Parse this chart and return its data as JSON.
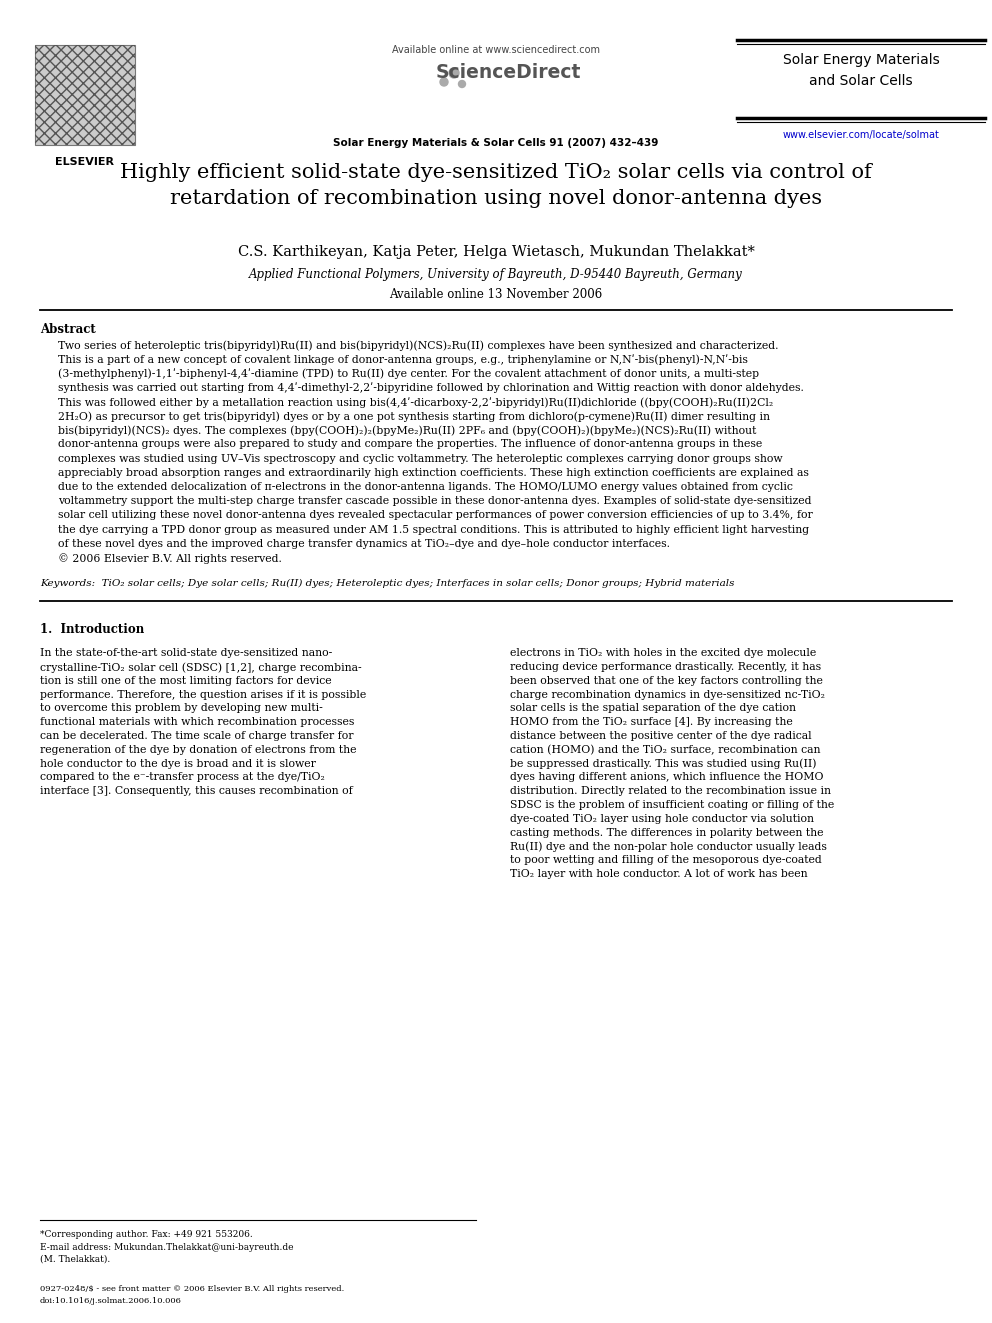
{
  "background_color": "#ffffff",
  "header_available_online": "Available online at www.sciencedirect.com",
  "header_sciencedirect": "ScienceDirect",
  "header_journal_name_right": "Solar Energy Materials\nand Solar Cells",
  "header_journal_citation": "Solar Energy Materials & Solar Cells 91 (2007) 432–439",
  "header_journal_url": "www.elsevier.com/locate/solmat",
  "header_elsevier": "ELSEVIER",
  "title_line1": "Highly efficient solid-state dye-sensitized TiO₂ solar cells via control of",
  "title_line2": "retardation of recombination using novel donor-antenna dyes",
  "authors": "C.S. Karthikeyan, Katja Peter, Helga Wietasch, Mukundan Thelakkat*",
  "affiliation": "Applied Functional Polymers, University of Bayreuth, D-95440 Bayreuth, Germany",
  "available_online_date": "Available online 13 November 2006",
  "abstract_title": "Abstract",
  "abstract_line1": "Two series of heteroleptic tris(bipyridyl)Ru(II) and bis(bipyridyl)(NCS)₂Ru(II) complexes have been synthesized and characterized.",
  "abstract_line2": "This is a part of a new concept of covalent linkage of donor-antenna groups, e.g., triphenylamine or N,Nʹ-bis(phenyl)-N,Nʹ-bis",
  "abstract_line3": "(3-methylphenyl)-1,1ʹ-biphenyl-4,4ʹ-diamine (TPD) to Ru(II) dye center. For the covalent attachment of donor units, a multi-step",
  "abstract_line4": "synthesis was carried out starting from 4,4ʹ-dimethyl-2,2ʹ-bipyridine followed by chlorination and Wittig reaction with donor aldehydes.",
  "abstract_line5": "This was followed either by a metallation reaction using bis(4,4ʹ-dicarboxy-2,2ʹ-bipyridyl)Ru(II)dichloride ((bpy(COOH)₂Ru(II)2Cl₂",
  "abstract_line6": "2H₂O) as precursor to get tris(bipyridyl) dyes or by a one pot synthesis starting from dichloro(p-cymene)Ru(II) dimer resulting in",
  "abstract_line7": "bis(bipyridyl)(NCS)₂ dyes. The complexes (bpy(COOH)₂)₂(bpyMe₂)Ru(II) 2PF₆ and (bpy(COOH)₂)(bpyMe₂)(NCS)₂Ru(II) without",
  "abstract_line8": "donor-antenna groups were also prepared to study and compare the properties. The influence of donor-antenna groups in these",
  "abstract_line9": "complexes was studied using UV–Vis spectroscopy and cyclic voltammetry. The heteroleptic complexes carrying donor groups show",
  "abstract_line10": "appreciably broad absorption ranges and extraordinarily high extinction coefficients. These high extinction coefficients are explained as",
  "abstract_line11": "due to the extended delocalization of π-electrons in the donor-antenna ligands. The HOMO/LUMO energy values obtained from cyclic",
  "abstract_line12": "voltammetry support the multi-step charge transfer cascade possible in these donor-antenna dyes. Examples of solid-state dye-sensitized",
  "abstract_line13": "solar cell utilizing these novel donor-antenna dyes revealed spectacular performances of power conversion efficiencies of up to 3.4%, for",
  "abstract_line14": "the dye carrying a TPD donor group as measured under AM 1.5 spectral conditions. This is attributed to highly efficient light harvesting",
  "abstract_line15": "of these novel dyes and the improved charge transfer dynamics at TiO₂–dye and dye–hole conductor interfaces.",
  "abstract_line16": "© 2006 Elsevier B.V. All rights reserved.",
  "keywords": "Keywords:  TiO₂ solar cells; Dye solar cells; Ru(II) dyes; Heteroleptic dyes; Interfaces in solar cells; Donor groups; Hybrid materials",
  "section1_title": "1.  Introduction",
  "intro_col1_lines": [
    "In the state-of-the-art solid-state dye-sensitized nano-",
    "crystalline-TiO₂ solar cell (SDSC) [1,2], charge recombina-",
    "tion is still one of the most limiting factors for device",
    "performance. Therefore, the question arises if it is possible",
    "to overcome this problem by developing new multi-",
    "functional materials with which recombination processes",
    "can be decelerated. The time scale of charge transfer for",
    "regeneration of the dye by donation of electrons from the",
    "hole conductor to the dye is broad and it is slower",
    "compared to the e⁻-transfer process at the dye/TiO₂",
    "interface [3]. Consequently, this causes recombination of"
  ],
  "intro_col2_lines": [
    "electrons in TiO₂ with holes in the excited dye molecule",
    "reducing device performance drastically. Recently, it has",
    "been observed that one of the key factors controlling the",
    "charge recombination dynamics in dye-sensitized nc-TiO₂",
    "solar cells is the spatial separation of the dye cation",
    "HOMO from the TiO₂ surface [4]. By increasing the",
    "distance between the positive center of the dye radical",
    "cation (HOMO) and the TiO₂ surface, recombination can",
    "be suppressed drastically. This was studied using Ru(II)",
    "dyes having different anions, which influence the HOMO",
    "distribution. Directly related to the recombination issue in",
    "SDSC is the problem of insufficient coating or filling of the",
    "dye-coated TiO₂ layer using hole conductor via solution",
    "casting methods. The differences in polarity between the",
    "Ru(II) dye and the non-polar hole conductor usually leads",
    "to poor wetting and filling of the mesoporous dye-coated",
    "TiO₂ layer with hole conductor. A lot of work has been"
  ],
  "footnote_star": "*Corresponding author. Fax: +49 921 553206.",
  "footnote_email1": "E-mail address: Mukundan.Thelakkat@uni-bayreuth.de",
  "footnote_email2": "(M. Thelakkat).",
  "footnote_issn1": "0927-0248/$ - see front matter © 2006 Elsevier B.V. All rights reserved.",
  "footnote_issn2": "doi:10.1016/j.solmat.2006.10.006"
}
